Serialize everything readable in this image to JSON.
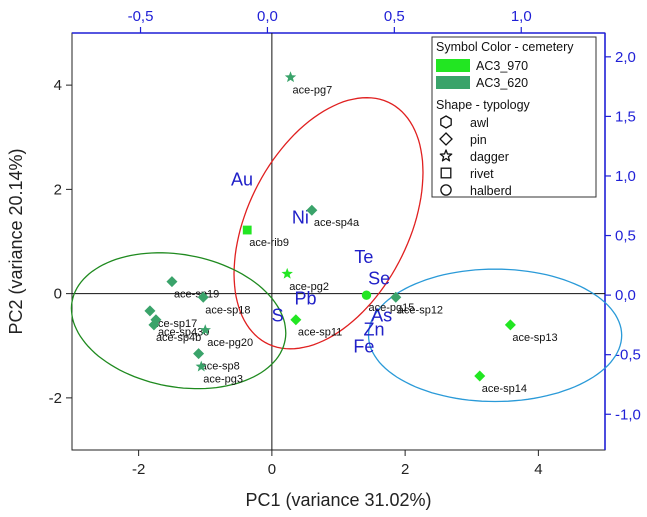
{
  "chart_data": {
    "type": "scatter",
    "xlabel": "PC1 (variance 31.02%)",
    "ylabel": "PC2 (variance 20.14%)",
    "xlim": [
      -3.0,
      5.0
    ],
    "ylim": [
      -3.0,
      5.0
    ],
    "x_ticks": [
      -2,
      0,
      2,
      4
    ],
    "y_ticks": [
      -2,
      0,
      2,
      4
    ],
    "x_tick_labels": [
      "-2",
      "0",
      "2",
      "4"
    ],
    "y_tick_labels": [
      "-2",
      "0",
      "2",
      "4"
    ],
    "loading_xlim": [
      -0.77,
      1.33
    ],
    "loading_ylim": [
      -1.3,
      2.2
    ],
    "top_ticks": [
      -0.5,
      0.0,
      0.5,
      1.0
    ],
    "top_tick_labels": [
      "-0,5",
      "0,0",
      "0,5",
      "1,0"
    ],
    "right_ticks": [
      -1.0,
      -0.5,
      0.0,
      0.5,
      1.0,
      1.5,
      2.0
    ],
    "right_tick_labels": [
      "-1,0",
      "-0,5",
      "0,0",
      "0,5",
      "1,0",
      "1,5",
      "2,0"
    ],
    "colors": {
      "AC3_970": "#22e622",
      "AC3_620": "#3aa36a",
      "axis_secondary": "#1f1fd6",
      "ellipse_red": "#e02020",
      "ellipse_green": "#1f8a1f",
      "ellipse_blue": "#2a9ad8"
    },
    "points": [
      {
        "label": "ace-pg7",
        "x": 0.28,
        "y": 4.15,
        "shape": "star",
        "group": "AC3_620"
      },
      {
        "label": "ace-sp4a",
        "x": 0.6,
        "y": 1.6,
        "shape": "diamond",
        "group": "AC3_620"
      },
      {
        "label": "ace-rib9",
        "x": -0.37,
        "y": 1.22,
        "shape": "square",
        "group": "AC3_970"
      },
      {
        "label": "ace-pg2",
        "x": 0.23,
        "y": 0.38,
        "shape": "star",
        "group": "AC3_970"
      },
      {
        "label": "ace-pg15",
        "x": 1.42,
        "y": -0.03,
        "shape": "circle",
        "group": "AC3_970"
      },
      {
        "label": "ace-sp12",
        "x": 1.86,
        "y": -0.07,
        "shape": "diamond",
        "group": "AC3_620"
      },
      {
        "label": "ace-sp11",
        "x": 0.36,
        "y": -0.5,
        "shape": "diamond",
        "group": "AC3_970"
      },
      {
        "label": "ace-sp13",
        "x": 3.58,
        "y": -0.6,
        "shape": "diamond",
        "group": "AC3_970"
      },
      {
        "label": "ace-sp14",
        "x": 3.12,
        "y": -1.58,
        "shape": "diamond",
        "group": "AC3_970"
      },
      {
        "label": "ace-sp19",
        "x": -1.5,
        "y": 0.23,
        "shape": "diamond",
        "group": "AC3_620"
      },
      {
        "label": "ace-sp18",
        "x": -1.03,
        "y": -0.07,
        "shape": "diamond",
        "group": "AC3_620"
      },
      {
        "label": "ace-sp17",
        "x": -1.83,
        "y": -0.33,
        "shape": "diamond",
        "group": "AC3_620"
      },
      {
        "label": "ace-sp430",
        "x": -1.74,
        "y": -0.5,
        "shape": "diamond",
        "group": "AC3_620"
      },
      {
        "label": "ace-sp4b",
        "x": -1.77,
        "y": -0.6,
        "shape": "diamond",
        "group": "AC3_620"
      },
      {
        "label": "ace-pg20",
        "x": -1.0,
        "y": -0.7,
        "shape": "star",
        "group": "AC3_620"
      },
      {
        "label": "ace-sp8",
        "x": -1.1,
        "y": -1.15,
        "shape": "diamond",
        "group": "AC3_620"
      },
      {
        "label": "ace-pg3",
        "x": -1.06,
        "y": -1.4,
        "shape": "star",
        "group": "AC3_620"
      }
    ],
    "element_labels": [
      {
        "text": "Au",
        "x": -0.1,
        "y": 0.92
      },
      {
        "text": "Ni",
        "x": 0.13,
        "y": 0.6
      },
      {
        "text": "Te",
        "x": 0.38,
        "y": 0.27
      },
      {
        "text": "Se",
        "x": 0.44,
        "y": 0.09
      },
      {
        "text": "Pb",
        "x": 0.15,
        "y": -0.08
      },
      {
        "text": "S",
        "x": 0.04,
        "y": -0.22
      },
      {
        "text": "As",
        "x": 0.45,
        "y": -0.22
      },
      {
        "text": "Zn",
        "x": 0.42,
        "y": -0.34
      },
      {
        "text": "Fe",
        "x": 0.38,
        "y": -0.48
      }
    ],
    "ellipses": [
      {
        "name": "red",
        "cx": 0.85,
        "cy": 1.35,
        "rx": 2.5,
        "ry": 1.25,
        "angle_deg": 72
      },
      {
        "name": "green",
        "cx": -1.4,
        "cy": -0.52,
        "rx": 1.65,
        "ry": 1.25,
        "angle_deg": -20
      },
      {
        "name": "blue",
        "cx": 3.35,
        "cy": -0.8,
        "rx": 1.9,
        "ry": 1.27,
        "angle_deg": 0
      }
    ],
    "legend": {
      "title_color": "Symbol Color - cemetery",
      "color_items": [
        {
          "label": "AC3_970",
          "color": "#22e622"
        },
        {
          "label": "AC3_620",
          "color": "#3aa36a"
        }
      ],
      "title_shape": "Shape - typology",
      "shape_items": [
        {
          "label": "awl",
          "shape": "hexagon"
        },
        {
          "label": "pin",
          "shape": "diamond"
        },
        {
          "label": "dagger",
          "shape": "star"
        },
        {
          "label": "rivet",
          "shape": "square"
        },
        {
          "label": "halberd",
          "shape": "circle"
        }
      ],
      "placement": "top-right"
    }
  }
}
